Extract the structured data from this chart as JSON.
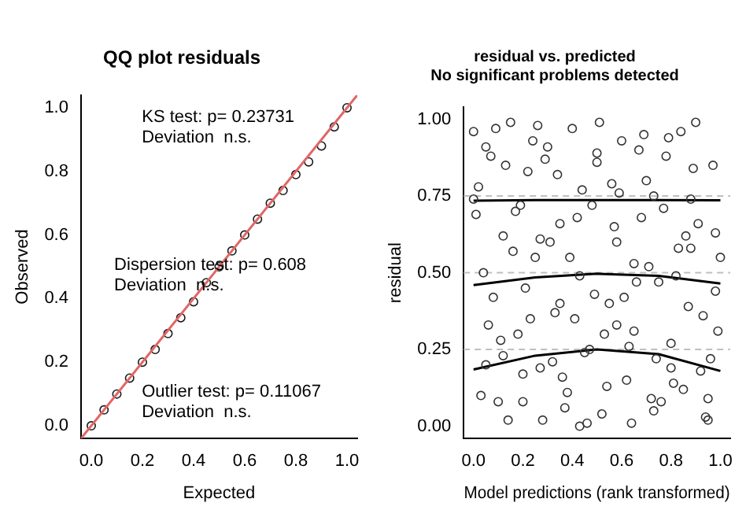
{
  "chart_data": [
    {
      "type": "scatter",
      "title": "QQ plot residuals",
      "xlabel": "Expected",
      "ylabel": "Observed",
      "marker": "circle",
      "grid": false,
      "xlim": [
        -0.04,
        1.04
      ],
      "ylim": [
        -0.04,
        1.04
      ],
      "xticks": [
        {
          "value": 0,
          "label": "0.0"
        },
        {
          "value": 0.2,
          "label": "0.2"
        },
        {
          "value": 0.4,
          "label": "0.4"
        },
        {
          "value": 0.6,
          "label": "0.6"
        },
        {
          "value": 0.8,
          "label": "0.8"
        },
        {
          "value": 1,
          "label": "1.0"
        }
      ],
      "yticks": [
        {
          "value": 0,
          "label": "0.0"
        },
        {
          "value": 0.2,
          "label": "0.2"
        },
        {
          "value": 0.4,
          "label": "0.4"
        },
        {
          "value": 0.6,
          "label": "0.6"
        },
        {
          "value": 0.8,
          "label": "0.8"
        },
        {
          "value": 1,
          "label": "1.0"
        }
      ],
      "annotations": [
        "KS test: p= 0.23731\nDeviation  n.s.",
        "Dispersion test: p= 0.608\nDeviation  n.s.",
        "Outlier test: p= 0.11067\nDeviation  n.s."
      ],
      "series": [
        {
          "type": "line",
          "color": "#e06666",
          "x": [
            -0.04,
            1.04
          ],
          "values": [
            -0.04,
            1.04
          ],
          "marker": "none"
        },
        {
          "color": "#1a1a1a",
          "x": [
            0,
            0.05,
            0.1,
            0.15,
            0.2,
            0.25,
            0.3,
            0.35,
            0.4,
            0.45,
            0.5,
            0.55,
            0.6,
            0.65,
            0.7,
            0.75,
            0.8,
            0.85,
            0.9,
            0.95,
            1
          ],
          "values": [
            0,
            0.05,
            0.1,
            0.15,
            0.2,
            0.24,
            0.29,
            0.34,
            0.39,
            0.45,
            0.5,
            0.55,
            0.6,
            0.65,
            0.7,
            0.74,
            0.79,
            0.83,
            0.88,
            0.94,
            1
          ]
        }
      ]
    },
    {
      "type": "scatter",
      "title": "residual vs. predicted",
      "subtitle": "No significant problems detected",
      "xlabel": "Model predictions (rank transformed)",
      "ylabel": "residual",
      "marker": "circle",
      "grid": false,
      "xlim": [
        -0.04,
        1.04
      ],
      "ylim": [
        -0.04,
        1.04
      ],
      "xticks": [
        {
          "value": 0,
          "label": "0.0"
        },
        {
          "value": 0.2,
          "label": "0.2"
        },
        {
          "value": 0.4,
          "label": "0.4"
        },
        {
          "value": 0.6,
          "label": "0.6"
        },
        {
          "value": 0.8,
          "label": "0.8"
        },
        {
          "value": 1,
          "label": "1.0"
        }
      ],
      "yticks": [
        {
          "value": 0,
          "label": "0.00"
        },
        {
          "value": 0.25,
          "label": "0.25"
        },
        {
          "value": 0.5,
          "label": "0.50"
        },
        {
          "value": 0.75,
          "label": "0.75"
        },
        {
          "value": 1,
          "label": "1.00"
        }
      ],
      "ref_lines": [
        {
          "axis": "y",
          "value": 0.25,
          "color": "#bfbfbf",
          "line_style": "dashed"
        },
        {
          "axis": "y",
          "value": 0.5,
          "color": "#bfbfbf",
          "line_style": "dashed"
        },
        {
          "axis": "y",
          "value": 0.75,
          "color": "#bfbfbf",
          "line_style": "dashed"
        }
      ],
      "series": [
        {
          "color": "#333333",
          "x": [
            0.0,
            0.02,
            0.05,
            0.08,
            0.1,
            0.12,
            0.15,
            0.18,
            0.2,
            0.22,
            0.25,
            0.28,
            0.3,
            0.33,
            0.35,
            0.38,
            0.4,
            0.43,
            0.45,
            0.48,
            0.5,
            0.52,
            0.55,
            0.58,
            0.6,
            0.62,
            0.65,
            0.68,
            0.7,
            0.73,
            0.75,
            0.78,
            0.8,
            0.83,
            0.85,
            0.88,
            0.9,
            0.93,
            0.95,
            0.98,
            1.0,
            0.01,
            0.04,
            0.07,
            0.11,
            0.14,
            0.17,
            0.21,
            0.24,
            0.27,
            0.31,
            0.34,
            0.37,
            0.41,
            0.44,
            0.47,
            0.51,
            0.54,
            0.57,
            0.61,
            0.64,
            0.67,
            0.71,
            0.74,
            0.77,
            0.81,
            0.84,
            0.87,
            0.91,
            0.94,
            0.97,
            0.99,
            0.03,
            0.09,
            0.16,
            0.23,
            0.29,
            0.36,
            0.42,
            0.49,
            0.56,
            0.63,
            0.69,
            0.76,
            0.82,
            0.89,
            0.96,
            0.06,
            0.13,
            0.19,
            0.26,
            0.32,
            0.39,
            0.46,
            0.53,
            0.59,
            0.66,
            0.72,
            0.79,
            0.86,
            0.92,
            0.98,
            0.0,
            0.05,
            0.12,
            0.2,
            0.27,
            0.35,
            0.43,
            0.5,
            0.58,
            0.65,
            0.73,
            0.8,
            0.88,
            0.95
          ],
          "values": [
            0.96,
            0.78,
            0.2,
            0.42,
            0.08,
            0.62,
            0.99,
            0.3,
            0.17,
            0.83,
            0.55,
            0.02,
            0.91,
            0.37,
            0.66,
            0.11,
            0.97,
            0.49,
            0.24,
            0.72,
            0.86,
            0.04,
            0.4,
            0.6,
            0.93,
            0.15,
            0.31,
            0.68,
            0.8,
            0.05,
            0.47,
            0.88,
            0.27,
            0.58,
            0.12,
            0.74,
            0.99,
            0.36,
            0.09,
            0.63,
            0.55,
            0.69,
            0.5,
            0.88,
            0.28,
            0.02,
            0.7,
            0.45,
            0.93,
            0.19,
            0.6,
            0.82,
            0.06,
            0.35,
            0.77,
            0.25,
            0.99,
            0.13,
            0.65,
            0.42,
            0.01,
            0.9,
            0.52,
            0.22,
            0.71,
            0.14,
            0.96,
            0.39,
            0.66,
            0.03,
            0.85,
            0.31,
            0.1,
            0.97,
            0.57,
            0.35,
            0.87,
            0.16,
            0.68,
            0.43,
            0.79,
            0.26,
            0.95,
            0.08,
            0.49,
            0.84,
            0.22,
            0.33,
            0.85,
            0.72,
            0.98,
            0.21,
            0.55,
            0.01,
            0.3,
            0.76,
            0.47,
            0.09,
            0.94,
            0.62,
            0.18,
            0.44,
            0.74,
            0.91,
            0.23,
            0.08,
            0.61,
            0.4,
            0.0,
            0.89,
            0.33,
            0.53,
            0.75,
            0.19,
            0.58,
            0.02
          ]
        },
        {
          "type": "line",
          "color": "#000000",
          "marker": "none",
          "x": [
            0,
            0.25,
            0.5,
            0.75,
            1
          ],
          "values": [
            0.735,
            0.737,
            0.737,
            0.737,
            0.736
          ]
        },
        {
          "type": "line",
          "color": "#000000",
          "marker": "none",
          "x": [
            0,
            0.25,
            0.5,
            0.75,
            1
          ],
          "values": [
            0.46,
            0.485,
            0.497,
            0.49,
            0.465
          ]
        },
        {
          "type": "line",
          "color": "#000000",
          "marker": "none",
          "x": [
            0,
            0.25,
            0.5,
            0.75,
            1
          ],
          "values": [
            0.185,
            0.23,
            0.25,
            0.235,
            0.18
          ]
        }
      ]
    }
  ]
}
